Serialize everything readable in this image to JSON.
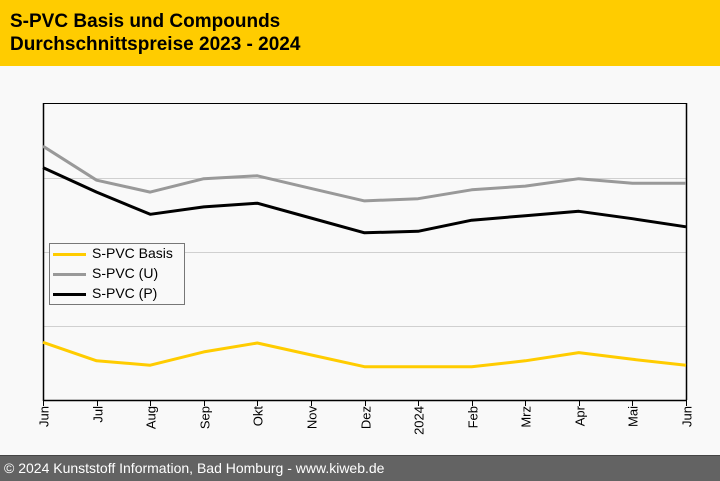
{
  "header": {
    "title_line1": "S-PVC Basis und Compounds",
    "title_line2": "Durchschnittspreise 2023 - 2024"
  },
  "footer": {
    "text": "© 2024 Kunststoff Information, Bad Homburg - www.kiweb.de"
  },
  "colors": {
    "header_bg": "#ffcc00",
    "footer_bg": "#636363",
    "basis": "#ffcc00",
    "u": "#999999",
    "p": "#000000"
  },
  "chart_data": {
    "type": "line",
    "title": "S-PVC Basis und Compounds Durchschnittspreise 2023 - 2024",
    "xlabel": "",
    "ylabel": "",
    "y_unit_note": "no y-axis labels shown; values are relative index units estimated from gridlines",
    "ylim": [
      0,
      4
    ],
    "y_gridlines": [
      1,
      2,
      3
    ],
    "grid": true,
    "legend_position": "middle-left",
    "categories": [
      "Jun",
      "Jul",
      "Aug",
      "Sep",
      "Okt",
      "Nov",
      "Dez",
      "2024",
      "Feb",
      "Mrz",
      "Apr",
      "Mai",
      "Jun"
    ],
    "series": [
      {
        "name": "S-PVC Basis",
        "color": "#ffcc00",
        "values": [
          0.78,
          0.53,
          0.47,
          0.65,
          0.77,
          0.61,
          0.45,
          0.45,
          0.45,
          0.53,
          0.64,
          0.55,
          0.47
        ]
      },
      {
        "name": "S-PVC (U)",
        "color": "#999999",
        "values": [
          3.43,
          2.97,
          2.81,
          2.99,
          3.03,
          2.86,
          2.69,
          2.72,
          2.84,
          2.89,
          2.99,
          2.93,
          2.93
        ]
      },
      {
        "name": "S-PVC (P)",
        "color": "#000000",
        "values": [
          3.14,
          2.81,
          2.51,
          2.61,
          2.66,
          2.46,
          2.26,
          2.28,
          2.43,
          2.49,
          2.55,
          2.45,
          2.34
        ]
      }
    ]
  }
}
